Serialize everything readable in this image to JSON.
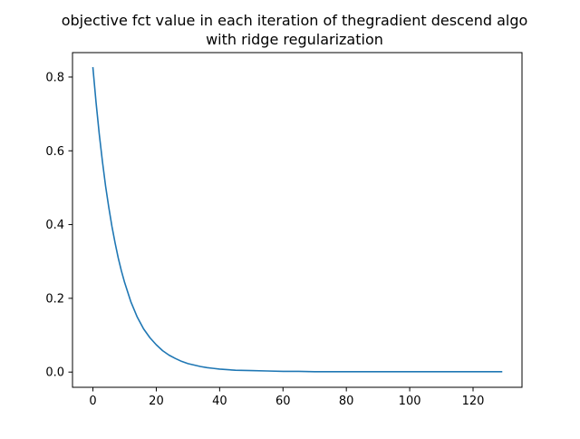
{
  "chart_data": {
    "type": "line",
    "title_lines": [
      "objective fct value in each iteration of thegradient descend algo",
      "with ridge regularization"
    ],
    "xlabel": "",
    "ylabel": "",
    "xlim": [
      -6.45,
      135.45
    ],
    "ylim": [
      -0.0413,
      0.8663
    ],
    "x_ticks": [
      0,
      20,
      40,
      60,
      80,
      100,
      120
    ],
    "y_ticks": [
      0.0,
      0.2,
      0.4,
      0.6,
      0.8
    ],
    "x_tick_labels": [
      "0",
      "20",
      "40",
      "60",
      "80",
      "100",
      "120"
    ],
    "y_tick_labels": [
      "0.0",
      "0.2",
      "0.4",
      "0.6",
      "0.8"
    ],
    "grid": false,
    "legend": "none",
    "series": [
      {
        "color": "#1f77b4",
        "x": [
          0,
          1,
          2,
          3,
          4,
          5,
          6,
          7,
          8,
          9,
          10,
          12,
          14,
          16,
          18,
          20,
          22,
          24,
          26,
          28,
          30,
          32,
          34,
          36,
          38,
          40,
          45,
          50,
          55,
          60,
          65,
          70,
          75,
          80,
          90,
          100,
          110,
          120,
          129
        ],
        "y": [
          0.825,
          0.73,
          0.645,
          0.571,
          0.504,
          0.447,
          0.395,
          0.35,
          0.309,
          0.274,
          0.243,
          0.19,
          0.149,
          0.117,
          0.093,
          0.074,
          0.058,
          0.046,
          0.037,
          0.029,
          0.023,
          0.019,
          0.015,
          0.012,
          0.01,
          0.008,
          0.005,
          0.004,
          0.003,
          0.002,
          0.002,
          0.001,
          0.001,
          0.001,
          0.001,
          0.001,
          0.001,
          0.001,
          0.001
        ]
      }
    ]
  }
}
